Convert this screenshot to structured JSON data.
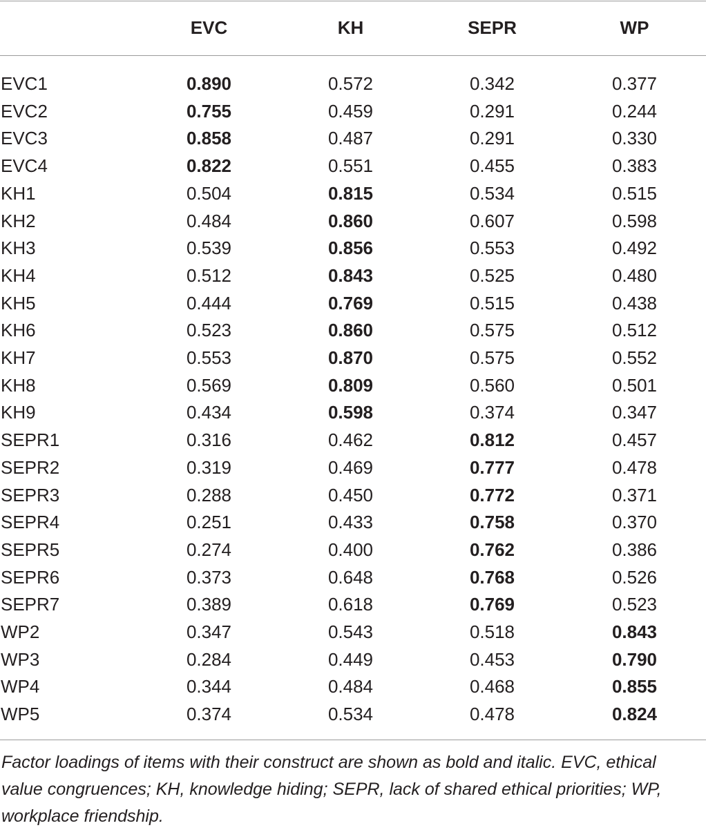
{
  "table": {
    "headers": [
      "",
      "EVC",
      "KH",
      "SEPR",
      "WP"
    ],
    "rows": [
      {
        "item": "EVC1",
        "values": [
          "0.890",
          "0.572",
          "0.342",
          "0.377"
        ],
        "bold": 0
      },
      {
        "item": "EVC2",
        "values": [
          "0.755",
          "0.459",
          "0.291",
          "0.244"
        ],
        "bold": 0
      },
      {
        "item": "EVC3",
        "values": [
          "0.858",
          "0.487",
          "0.291",
          "0.330"
        ],
        "bold": 0
      },
      {
        "item": "EVC4",
        "values": [
          "0.822",
          "0.551",
          "0.455",
          "0.383"
        ],
        "bold": 0
      },
      {
        "item": "KH1",
        "values": [
          "0.504",
          "0.815",
          "0.534",
          "0.515"
        ],
        "bold": 1
      },
      {
        "item": "KH2",
        "values": [
          "0.484",
          "0.860",
          "0.607",
          "0.598"
        ],
        "bold": 1
      },
      {
        "item": "KH3",
        "values": [
          "0.539",
          "0.856",
          "0.553",
          "0.492"
        ],
        "bold": 1
      },
      {
        "item": "KH4",
        "values": [
          "0.512",
          "0.843",
          "0.525",
          "0.480"
        ],
        "bold": 1
      },
      {
        "item": "KH5",
        "values": [
          "0.444",
          "0.769",
          "0.515",
          "0.438"
        ],
        "bold": 1
      },
      {
        "item": "KH6",
        "values": [
          "0.523",
          "0.860",
          "0.575",
          "0.512"
        ],
        "bold": 1
      },
      {
        "item": "KH7",
        "values": [
          "0.553",
          "0.870",
          "0.575",
          "0.552"
        ],
        "bold": 1
      },
      {
        "item": "KH8",
        "values": [
          "0.569",
          "0.809",
          "0.560",
          "0.501"
        ],
        "bold": 1
      },
      {
        "item": "KH9",
        "values": [
          "0.434",
          "0.598",
          "0.374",
          "0.347"
        ],
        "bold": 1
      },
      {
        "item": "SEPR1",
        "values": [
          "0.316",
          "0.462",
          "0.812",
          "0.457"
        ],
        "bold": 2
      },
      {
        "item": "SEPR2",
        "values": [
          "0.319",
          "0.469",
          "0.777",
          "0.478"
        ],
        "bold": 2
      },
      {
        "item": "SEPR3",
        "values": [
          "0.288",
          "0.450",
          "0.772",
          "0.371"
        ],
        "bold": 2
      },
      {
        "item": "SEPR4",
        "values": [
          "0.251",
          "0.433",
          "0.758",
          "0.370"
        ],
        "bold": 2
      },
      {
        "item": "SEPR5",
        "values": [
          "0.274",
          "0.400",
          "0.762",
          "0.386"
        ],
        "bold": 2
      },
      {
        "item": "SEPR6",
        "values": [
          "0.373",
          "0.648",
          "0.768",
          "0.526"
        ],
        "bold": 2
      },
      {
        "item": "SEPR7",
        "values": [
          "0.389",
          "0.618",
          "0.769",
          "0.523"
        ],
        "bold": 2
      },
      {
        "item": "WP2",
        "values": [
          "0.347",
          "0.543",
          "0.518",
          "0.843"
        ],
        "bold": 3
      },
      {
        "item": "WP3",
        "values": [
          "0.284",
          "0.449",
          "0.453",
          "0.790"
        ],
        "bold": 3
      },
      {
        "item": "WP4",
        "values": [
          "0.344",
          "0.484",
          "0.468",
          "0.855"
        ],
        "bold": 3
      },
      {
        "item": "WP5",
        "values": [
          "0.374",
          "0.534",
          "0.478",
          "0.824"
        ],
        "bold": 3
      }
    ]
  },
  "footnote": "Factor loadings of items with their construct are shown as bold and italic. EVC, ethical value congruences; KH, knowledge hiding; SEPR, lack of shared ethical priorities; WP, workplace friendship."
}
